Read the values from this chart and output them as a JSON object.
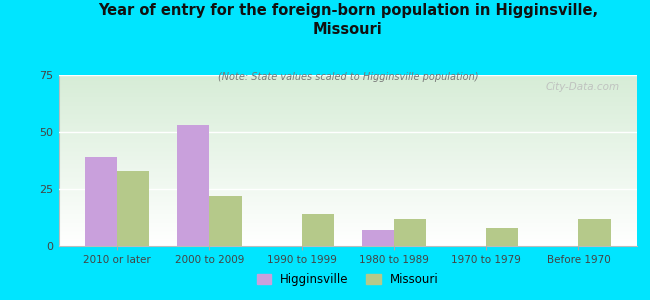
{
  "title": "Year of entry for the foreign-born population in Higginsville,\nMissouri",
  "subtitle": "(Note: State values scaled to Higginsville population)",
  "categories": [
    "2010 or later",
    "2000 to 2009",
    "1990 to 1999",
    "1980 to 1989",
    "1970 to 1979",
    "Before 1970"
  ],
  "higginsville": [
    39,
    53,
    0,
    7,
    0,
    0
  ],
  "missouri": [
    33,
    22,
    14,
    12,
    8,
    12
  ],
  "higginsville_color": "#c9a0dc",
  "missouri_color": "#b5c98a",
  "background_color": "#00e5ff",
  "grad_top": "#d6ecd6",
  "grad_bottom": "#ffffff",
  "ylim": [
    0,
    75
  ],
  "yticks": [
    0,
    25,
    50,
    75
  ],
  "bar_width": 0.35,
  "watermark": "City-Data.com"
}
